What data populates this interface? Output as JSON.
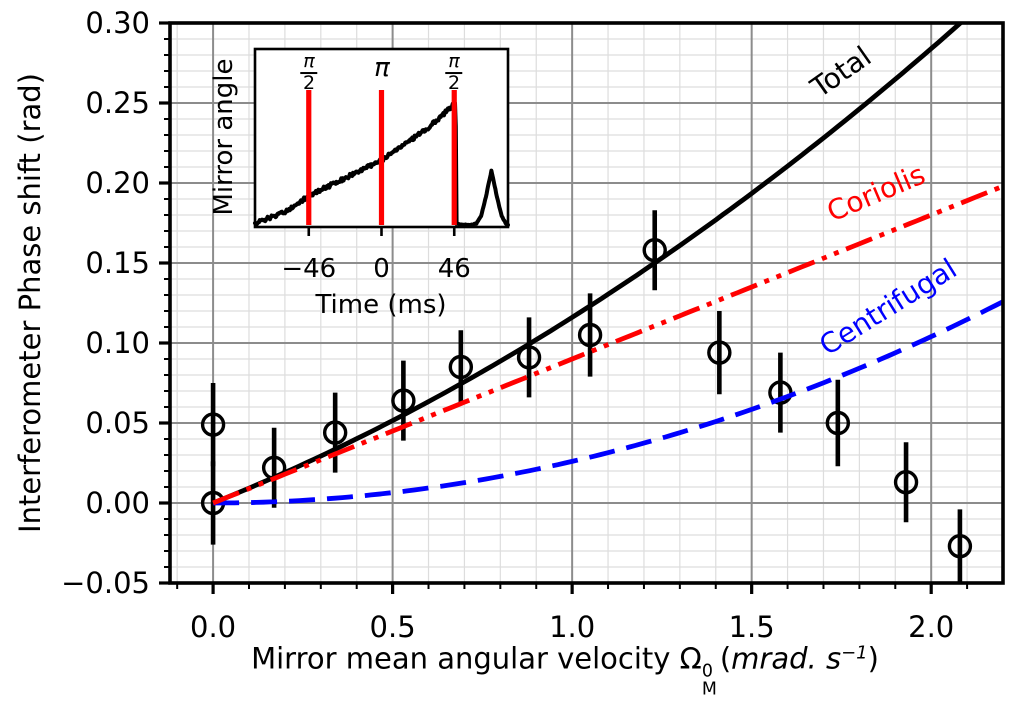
{
  "chart_data": {
    "type": "line",
    "title": "",
    "ylabel": "Interferometer Phase shift (rad)",
    "xlabel": {
      "prefix": "Mirror mean angular velocity Ω",
      "sup": "0",
      "sub": "M",
      "unit_open": "(",
      "unit": "mrad. s",
      "unit_exp": "−1",
      "unit_close": ")"
    },
    "xlim": [
      -0.12,
      2.2
    ],
    "ylim": [
      -0.05,
      0.3
    ],
    "x_major_ticks": [
      0.0,
      0.5,
      1.0,
      1.5,
      2.0
    ],
    "x_tick_labels": [
      "0.0",
      "0.5",
      "1.0",
      "1.5",
      "2.0"
    ],
    "x_minor_step": 0.1,
    "y_major_ticks": [
      -0.05,
      0.0,
      0.05,
      0.1,
      0.15,
      0.2,
      0.25,
      0.3
    ],
    "y_tick_labels": [
      "−0.05",
      "0.00",
      "0.05",
      "0.10",
      "0.15",
      "0.20",
      "0.25",
      "0.30"
    ],
    "y_minor_step": 0.01,
    "grid": {
      "major_color": "#8c8c8c",
      "minor_color": "#dddddd",
      "major_width": 2,
      "minor_width": 1.2
    },
    "series": [
      {
        "name": "Total",
        "color": "#000000",
        "linestyle": "solid",
        "model": "linear_plus_quadratic",
        "linear_coeff": 0.09,
        "quadratic_coeff": 0.026,
        "x_start": 0,
        "x_end": 2.2
      },
      {
        "name": "Coriolis",
        "color": "#ff0000",
        "linestyle": "dashdot",
        "model": "linear",
        "linear_coeff": 0.09,
        "quadratic_coeff": 0,
        "x_start": 0,
        "x_end": 2.2
      },
      {
        "name": "Centrifugal",
        "color": "#0000ff",
        "linestyle": "dashed",
        "model": "quadratic",
        "linear_coeff": 0,
        "quadratic_coeff": 0.026,
        "x_start": 0,
        "x_end": 2.2
      }
    ],
    "points": {
      "marker": "open-circle",
      "color": "#000000",
      "data": [
        {
          "x": 0.0,
          "y": 0.049,
          "yerr": 0.026
        },
        {
          "x": 0.0,
          "y": 0.0,
          "yerr": 0.026
        },
        {
          "x": 0.17,
          "y": 0.022,
          "yerr": 0.025
        },
        {
          "x": 0.34,
          "y": 0.044,
          "yerr": 0.025
        },
        {
          "x": 0.53,
          "y": 0.064,
          "yerr": 0.025
        },
        {
          "x": 0.69,
          "y": 0.085,
          "yerr": 0.023
        },
        {
          "x": 0.88,
          "y": 0.091,
          "yerr": 0.025
        },
        {
          "x": 1.05,
          "y": 0.105,
          "yerr": 0.026
        },
        {
          "x": 1.23,
          "y": 0.158,
          "yerr": 0.025
        },
        {
          "x": 1.41,
          "y": 0.094,
          "yerr": 0.026
        },
        {
          "x": 1.58,
          "y": 0.069,
          "yerr": 0.025
        },
        {
          "x": 1.74,
          "y": 0.05,
          "yerr": 0.027
        },
        {
          "x": 1.93,
          "y": 0.013,
          "yerr": 0.025
        },
        {
          "x": 2.08,
          "y": -0.027,
          "yerr": 0.023
        }
      ]
    },
    "inset": {
      "xlabel": "Time (ms)",
      "ylabel": "Mirror angle",
      "xlim": [
        -80,
        80
      ],
      "x_ticks": [
        -46,
        0,
        46
      ],
      "x_tick_labels": [
        "−46",
        "0",
        "46"
      ],
      "pulse_color": "#ff0000",
      "pulses": [
        {
          "t": -46,
          "label_num": "π",
          "label_den": "2"
        },
        {
          "t": 0,
          "label_num": "π",
          "label_den": ""
        },
        {
          "t": 46,
          "label_num": "π",
          "label_den": "2"
        }
      ],
      "pulse_top_frac": 0.77,
      "trace_color": "#000000",
      "trace_points": [
        [
          -80,
          0.02
        ],
        [
          -60,
          0.09
        ],
        [
          -46,
          0.175
        ],
        [
          0,
          0.375
        ],
        [
          30,
          0.56
        ],
        [
          46,
          0.69
        ],
        [
          46.9,
          0.7
        ],
        [
          47.4,
          0.02
        ],
        [
          50,
          0.012
        ],
        [
          57,
          0.012
        ],
        [
          60,
          0.02
        ],
        [
          63,
          0.06
        ],
        [
          66,
          0.17
        ],
        [
          69.5,
          0.315
        ],
        [
          73,
          0.17
        ],
        [
          76,
          0.06
        ],
        [
          79,
          0.015
        ],
        [
          80,
          0.01
        ]
      ]
    }
  }
}
